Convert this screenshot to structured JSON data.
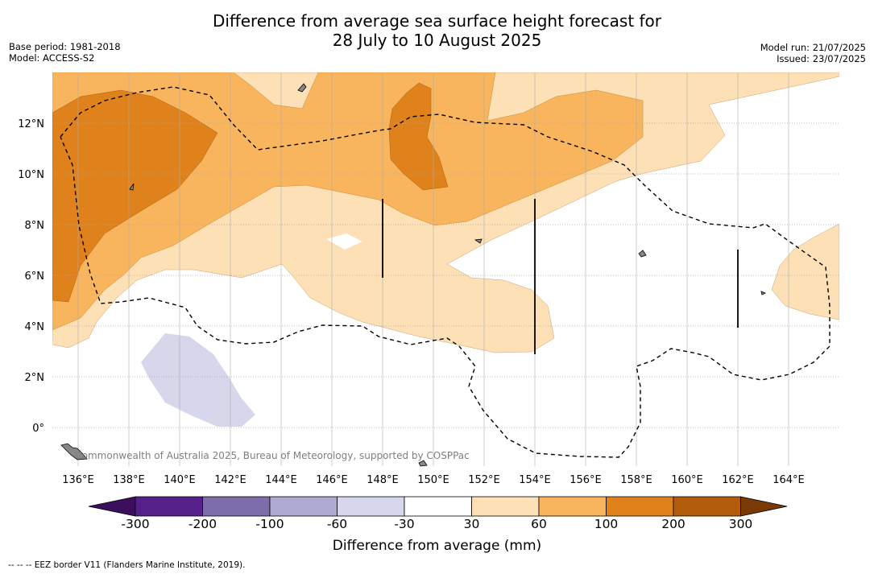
{
  "title": {
    "line1": "Difference from average sea surface height forecast for",
    "line2": "28 July to 10 August 2025"
  },
  "meta_left": {
    "base_period": "Base period: 1981-2018",
    "model": "Model: ACCESS-S2"
  },
  "meta_right": {
    "model_run": "Model run: 21/07/2025",
    "issued": "Issued: 23/07/2025"
  },
  "map": {
    "lat_labels": [
      "12°N",
      "10°N",
      "8°N",
      "6°N",
      "4°N",
      "2°N",
      "0°"
    ],
    "lon_labels": [
      "136°E",
      "138°E",
      "140°E",
      "142°E",
      "144°E",
      "146°E",
      "148°E",
      "150°E",
      "152°E",
      "154°E",
      "156°E",
      "158°E",
      "160°E",
      "162°E",
      "164°E"
    ],
    "copyright": "Commonwealth of Australia 2025, Bureau of Meteorology, supported by COSPPac",
    "colors": {
      "neg300": "#3b0f5c",
      "neg200": "#55208a",
      "neg100": "#7d6eab",
      "neg60": "#aeaad2",
      "neg30": "#d6d7ea",
      "neutral": "#ffffff",
      "pos30": "#fde0b6",
      "pos60": "#f8b55e",
      "pos100": "#e0821b",
      "pos200": "#b35c0c",
      "pos300": "#7a3a05"
    }
  },
  "colorbar": {
    "ticks": [
      "-300",
      "-200",
      "-100",
      "-60",
      "-30",
      "30",
      "60",
      "100",
      "200",
      "300"
    ],
    "title": "Difference from average (mm)"
  },
  "footnote": "-- -- -- EEZ border V11 (Flanders Marine Institute, 2019)."
}
